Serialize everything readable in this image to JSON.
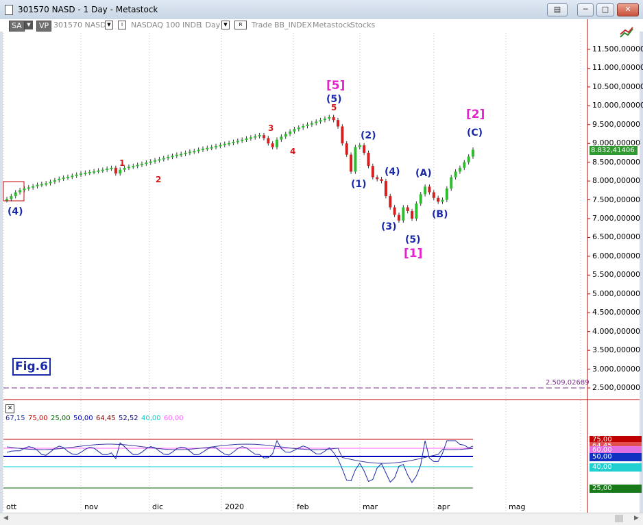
{
  "window": {
    "title": "301570 NASD - 1 Day - Metastock"
  },
  "toolbar": {
    "sa": "SA",
    "vp": "VP",
    "symbol": "301570 NASD",
    "indicator_label": "I",
    "index_name": "NASDAQ 100 INDE",
    "period": "1 Day",
    "r_label": "R",
    "trade": "Trade",
    "bb_index": "BB_INDEX",
    "metastock": "Metastock",
    "stocks": "Stocks"
  },
  "chart_data": {
    "type": "candlestick",
    "y_ticks": [
      "11.500,00000",
      "11.000,00000",
      "10.500,00000",
      "10.000,00000",
      "9.500,00000",
      "9.000,00000",
      "8.500,00000",
      "8.000,00000",
      "7.500,00000",
      "7.000,00000",
      "6.500,00000",
      "6.000,00000",
      "5.500,00000",
      "5.000,00000",
      "4.500,00000",
      "4.000,00000",
      "3.500,00000",
      "3.000,00000",
      "2.500,00000"
    ],
    "ylim": [
      2500,
      11500
    ],
    "last_price_label": "8.832,41406",
    "hline_label": "2.509,02689",
    "hline_value": 2509,
    "x_labels": [
      "ott",
      "nov",
      "dic",
      "2020",
      "feb",
      "mar",
      "apr",
      "mag"
    ],
    "closes": [
      7520,
      7600,
      7700,
      7760,
      7800,
      7830,
      7860,
      7900,
      7920,
      7940,
      7980,
      8020,
      8060,
      8090,
      8110,
      8140,
      8170,
      8200,
      8220,
      8240,
      8260,
      8280,
      8300,
      8330,
      8350,
      8200,
      8300,
      8350,
      8380,
      8400,
      8430,
      8460,
      8490,
      8520,
      8550,
      8580,
      8610,
      8640,
      8670,
      8700,
      8720,
      8750,
      8780,
      8800,
      8830,
      8860,
      8880,
      8900,
      8930,
      8960,
      8990,
      9010,
      9040,
      9070,
      9100,
      9130,
      9160,
      9190,
      9220,
      9140,
      9000,
      8900,
      9100,
      9180,
      9250,
      9320,
      9380,
      9420,
      9460,
      9500,
      9540,
      9580,
      9620,
      9660,
      9700,
      9620,
      9450,
      9000,
      8700,
      8250,
      8900,
      8950,
      8750,
      8400,
      8100,
      8050,
      8000,
      7600,
      7300,
      7100,
      6950,
      7300,
      7200,
      7000,
      7400,
      7650,
      7850,
      7700,
      7550,
      7450,
      7500,
      7800,
      8100,
      8250,
      8350,
      8500,
      8650,
      8832
    ]
  },
  "waves": [
    {
      "text": "[5]",
      "style": "mag"
    },
    {
      "text": "(5)",
      "style": "blue"
    },
    {
      "text": "5",
      "style": "red"
    },
    {
      "text": "3",
      "style": "red"
    },
    {
      "text": "4",
      "style": "red"
    },
    {
      "text": "1",
      "style": "red"
    },
    {
      "text": "2",
      "style": "red"
    },
    {
      "text": "(4)",
      "style": "blue"
    },
    {
      "text": "(1)",
      "style": "blue"
    },
    {
      "text": "(2)",
      "style": "blue"
    },
    {
      "text": "(4)",
      "style": "blue"
    },
    {
      "text": "(3)",
      "style": "blue"
    },
    {
      "text": "(5)",
      "style": "blue"
    },
    {
      "text": "[1]",
      "style": "mag"
    },
    {
      "text": "(A)",
      "style": "blue"
    },
    {
      "text": "(B)",
      "style": "blue"
    },
    {
      "text": "(C)",
      "style": "blue"
    },
    {
      "text": "[2]",
      "style": "mag"
    }
  ],
  "fig_label": "Fig.6",
  "indicator": {
    "legend": [
      {
        "text": "67,15",
        "color": "#1a29a8"
      },
      {
        "text": "75,00",
        "color": "#c00000"
      },
      {
        "text": "25,00",
        "color": "#006400"
      },
      {
        "text": "50,00",
        "color": "#0000c0"
      },
      {
        "text": "64,45",
        "color": "#800000"
      },
      {
        "text": "52,52",
        "color": "#000080"
      },
      {
        "text": "40,00",
        "color": "#00d0d0"
      },
      {
        "text": "60,00",
        "color": "#ff66ff"
      }
    ],
    "boxes": [
      {
        "text": "75,00",
        "color": "#c00000"
      },
      {
        "text": "64,45",
        "color": "#e05050"
      },
      {
        "text": "60,00",
        "color": "#e070e0"
      },
      {
        "text": "50,00",
        "color": "#1030c0"
      },
      {
        "text": "40,00",
        "color": "#20d0d0"
      },
      {
        "text": "25,00",
        "color": "#1a7a1a"
      }
    ]
  }
}
